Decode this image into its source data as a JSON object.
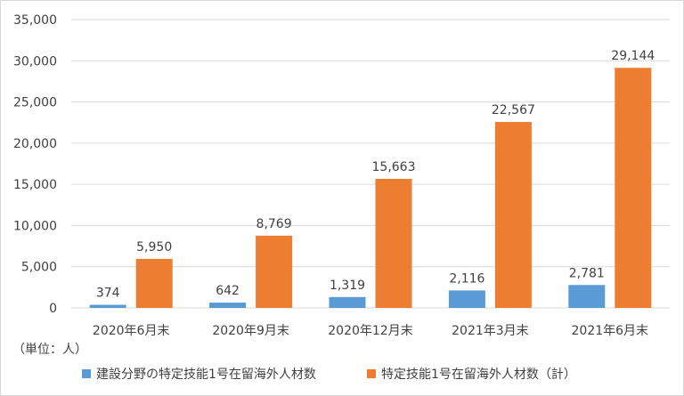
{
  "chart_data": {
    "type": "bar",
    "categories": [
      "2020年6月末",
      "2020年9月末",
      "2020年12月末",
      "2021年3月末",
      "2021年6月末"
    ],
    "series": [
      {
        "name": "建設分野の特定技能1号在留海外人材数",
        "values": [
          374,
          642,
          1319,
          2116,
          2781
        ],
        "labels": [
          "374",
          "642",
          "1,319",
          "2,116",
          "2,781"
        ],
        "color": "#5b9bd5"
      },
      {
        "name": "特定技能1号在留海外人材数（計）",
        "values": [
          5950,
          8769,
          15663,
          22567,
          29144
        ],
        "labels": [
          "5,950",
          "8,769",
          "15,663",
          "22,567",
          "29,144"
        ],
        "color": "#ed7d31"
      }
    ],
    "y_ticks": [
      "0",
      "5,000",
      "10,000",
      "15,000",
      "20,000",
      "25,000",
      "30,000",
      "35,000"
    ],
    "ylim": [
      0,
      35000
    ],
    "grid": true,
    "legend_position": "bottom",
    "unit_note": "（単位：人）"
  }
}
